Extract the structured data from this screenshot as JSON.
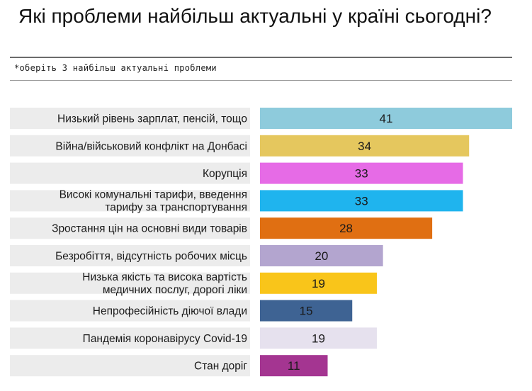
{
  "title": "Які проблеми найбільш актуальні у країні сьогодні?",
  "subtitle": "*оберіть 3 найбільш актуальні проблеми",
  "chart_data": {
    "type": "bar",
    "orientation": "horizontal",
    "title": "Які проблеми найбільш актуальні у країні сьогодні?",
    "subtitle": "*оберіть 3 найбільш актуальні проблеми",
    "xlim": [
      0,
      41
    ],
    "grid": false,
    "categories": [
      [
        "Низький рівень зарплат, пенсій, тощо"
      ],
      [
        "Війна/військовий конфлікт на Донбасі"
      ],
      [
        "Корупція"
      ],
      [
        "Високі комунальні тарифи, введення",
        "тарифу за транспортування"
      ],
      [
        "Зростання цін на основні види товарів"
      ],
      [
        "Безробіття, відсутність робочих місць"
      ],
      [
        "Низька якість та висока вартість",
        "медичних послуг, дорогі ліки"
      ],
      [
        "Непрофесійність діючої влади"
      ],
      [
        "Пандемія коронавірусу Covid-19"
      ],
      [
        "Стан доріг"
      ]
    ],
    "values": [
      41,
      34,
      33,
      33,
      28,
      20,
      19,
      15,
      19,
      11
    ],
    "colors": [
      "#8ecbdc",
      "#e5c75e",
      "#e66be6",
      "#1fb4ee",
      "#e06f12",
      "#b3a5cf",
      "#f9c51a",
      "#3e6393",
      "#e6e1ee",
      "#a43591"
    ],
    "label_background": "#ececec"
  }
}
